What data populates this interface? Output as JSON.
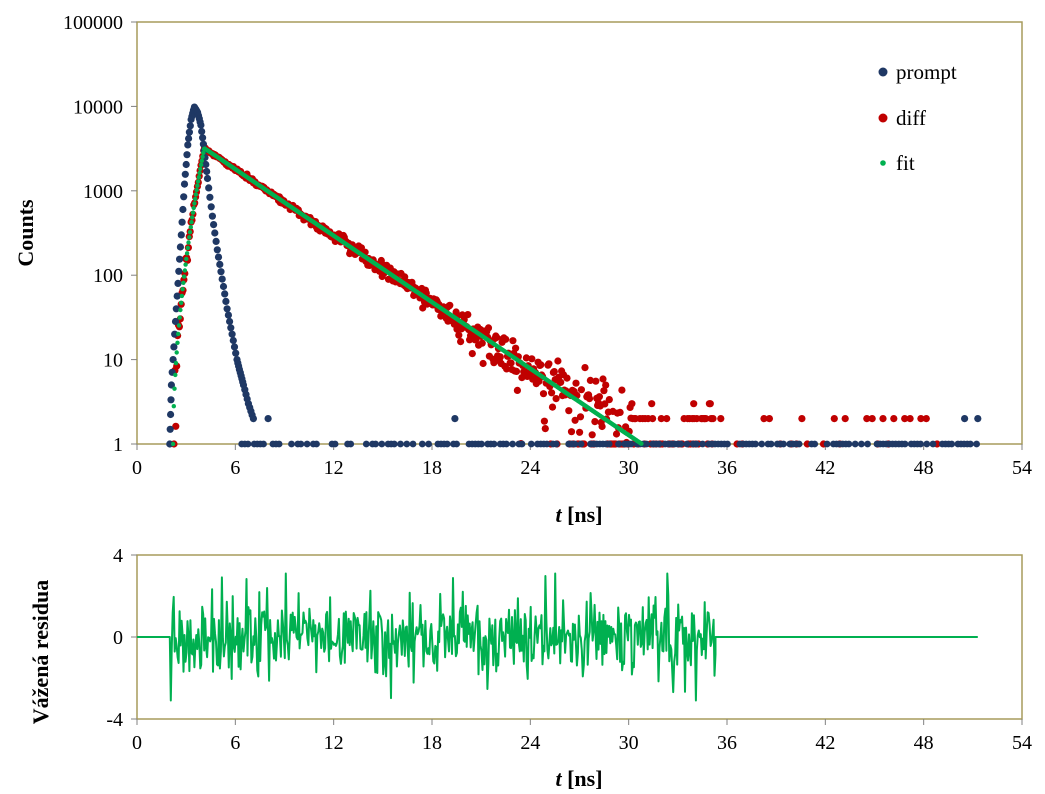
{
  "colors": {
    "prompt": "#1F3864",
    "diff": "#C00000",
    "fit": "#00B050",
    "frame": "#A79B5C",
    "axis": "#808080"
  },
  "chart_data": [
    {
      "type": "scatter",
      "title": "",
      "ylabel": "Counts",
      "xlabel_italic": "t",
      "xlabel_rest": " [ns]",
      "xlim": [
        0,
        54
      ],
      "ylim": [
        1,
        100000
      ],
      "yscale": "log",
      "xticks": [
        "0",
        "6",
        "12",
        "18",
        "24",
        "30",
        "36",
        "42",
        "48",
        "54"
      ],
      "yticks": [
        "1",
        "10",
        "100",
        "1000",
        "10000",
        "100000"
      ],
      "legend": {
        "position": "top-right",
        "entries": [
          "prompt",
          "diff",
          "fit"
        ]
      },
      "series": [
        {
          "name": "prompt",
          "description": "instrument response, gaussian-like peak",
          "peak": {
            "x": 3.5,
            "y": 9800
          },
          "points": [
            [
              2.0,
              1
            ],
            [
              2.1,
              5
            ],
            [
              2.3,
              20
            ],
            [
              2.5,
              80
            ],
            [
              2.7,
              300
            ],
            [
              2.9,
              1200
            ],
            [
              3.1,
              3500
            ],
            [
              3.3,
              7000
            ],
            [
              3.5,
              9800
            ],
            [
              3.7,
              8500
            ],
            [
              3.9,
              6000
            ],
            [
              4.1,
              3000
            ],
            [
              4.3,
              1400
            ],
            [
              4.6,
              500
            ],
            [
              4.9,
              200
            ],
            [
              5.2,
              90
            ],
            [
              5.5,
              40
            ],
            [
              5.8,
              20
            ],
            [
              6.1,
              10
            ],
            [
              6.3,
              7
            ],
            [
              6.5,
              5
            ],
            [
              6.8,
              3
            ],
            [
              7.1,
              2
            ],
            [
              8.0,
              2
            ],
            [
              19.4,
              2
            ],
            [
              50.5,
              2
            ],
            [
              51.3,
              2
            ]
          ],
          "baseline": 1
        },
        {
          "name": "diff",
          "description": "measured decay",
          "peak": {
            "x": 4.1,
            "y": 3200
          },
          "decay_end_x": 35.3,
          "noise_floor": 2
        },
        {
          "name": "fit",
          "description": "mono-exponential fit",
          "peak": {
            "x": 4.1,
            "y": 3200
          },
          "end": {
            "x": 30.8,
            "y": 1
          },
          "rise_start_x": 2.2
        }
      ]
    },
    {
      "type": "line",
      "title": "",
      "ylabel": "Vážená residua",
      "xlabel_italic": "t",
      "xlabel_rest": " [ns]",
      "xlim": [
        0,
        54
      ],
      "ylim": [
        -4,
        4
      ],
      "xticks": [
        "0",
        "6",
        "12",
        "18",
        "24",
        "30",
        "36",
        "42",
        "48",
        "54"
      ],
      "yticks": [
        "-4",
        "0",
        "4"
      ],
      "series": [
        {
          "name": "",
          "description": "weighted residuals: zero outside 2.0–35.3 ns, noise of amplitude ~±2 inside",
          "flat_until": 2.0,
          "noise_until": 35.3,
          "flat_end": 51.3,
          "amplitude_min": -3.1,
          "amplitude_max": 3.1
        }
      ]
    }
  ]
}
